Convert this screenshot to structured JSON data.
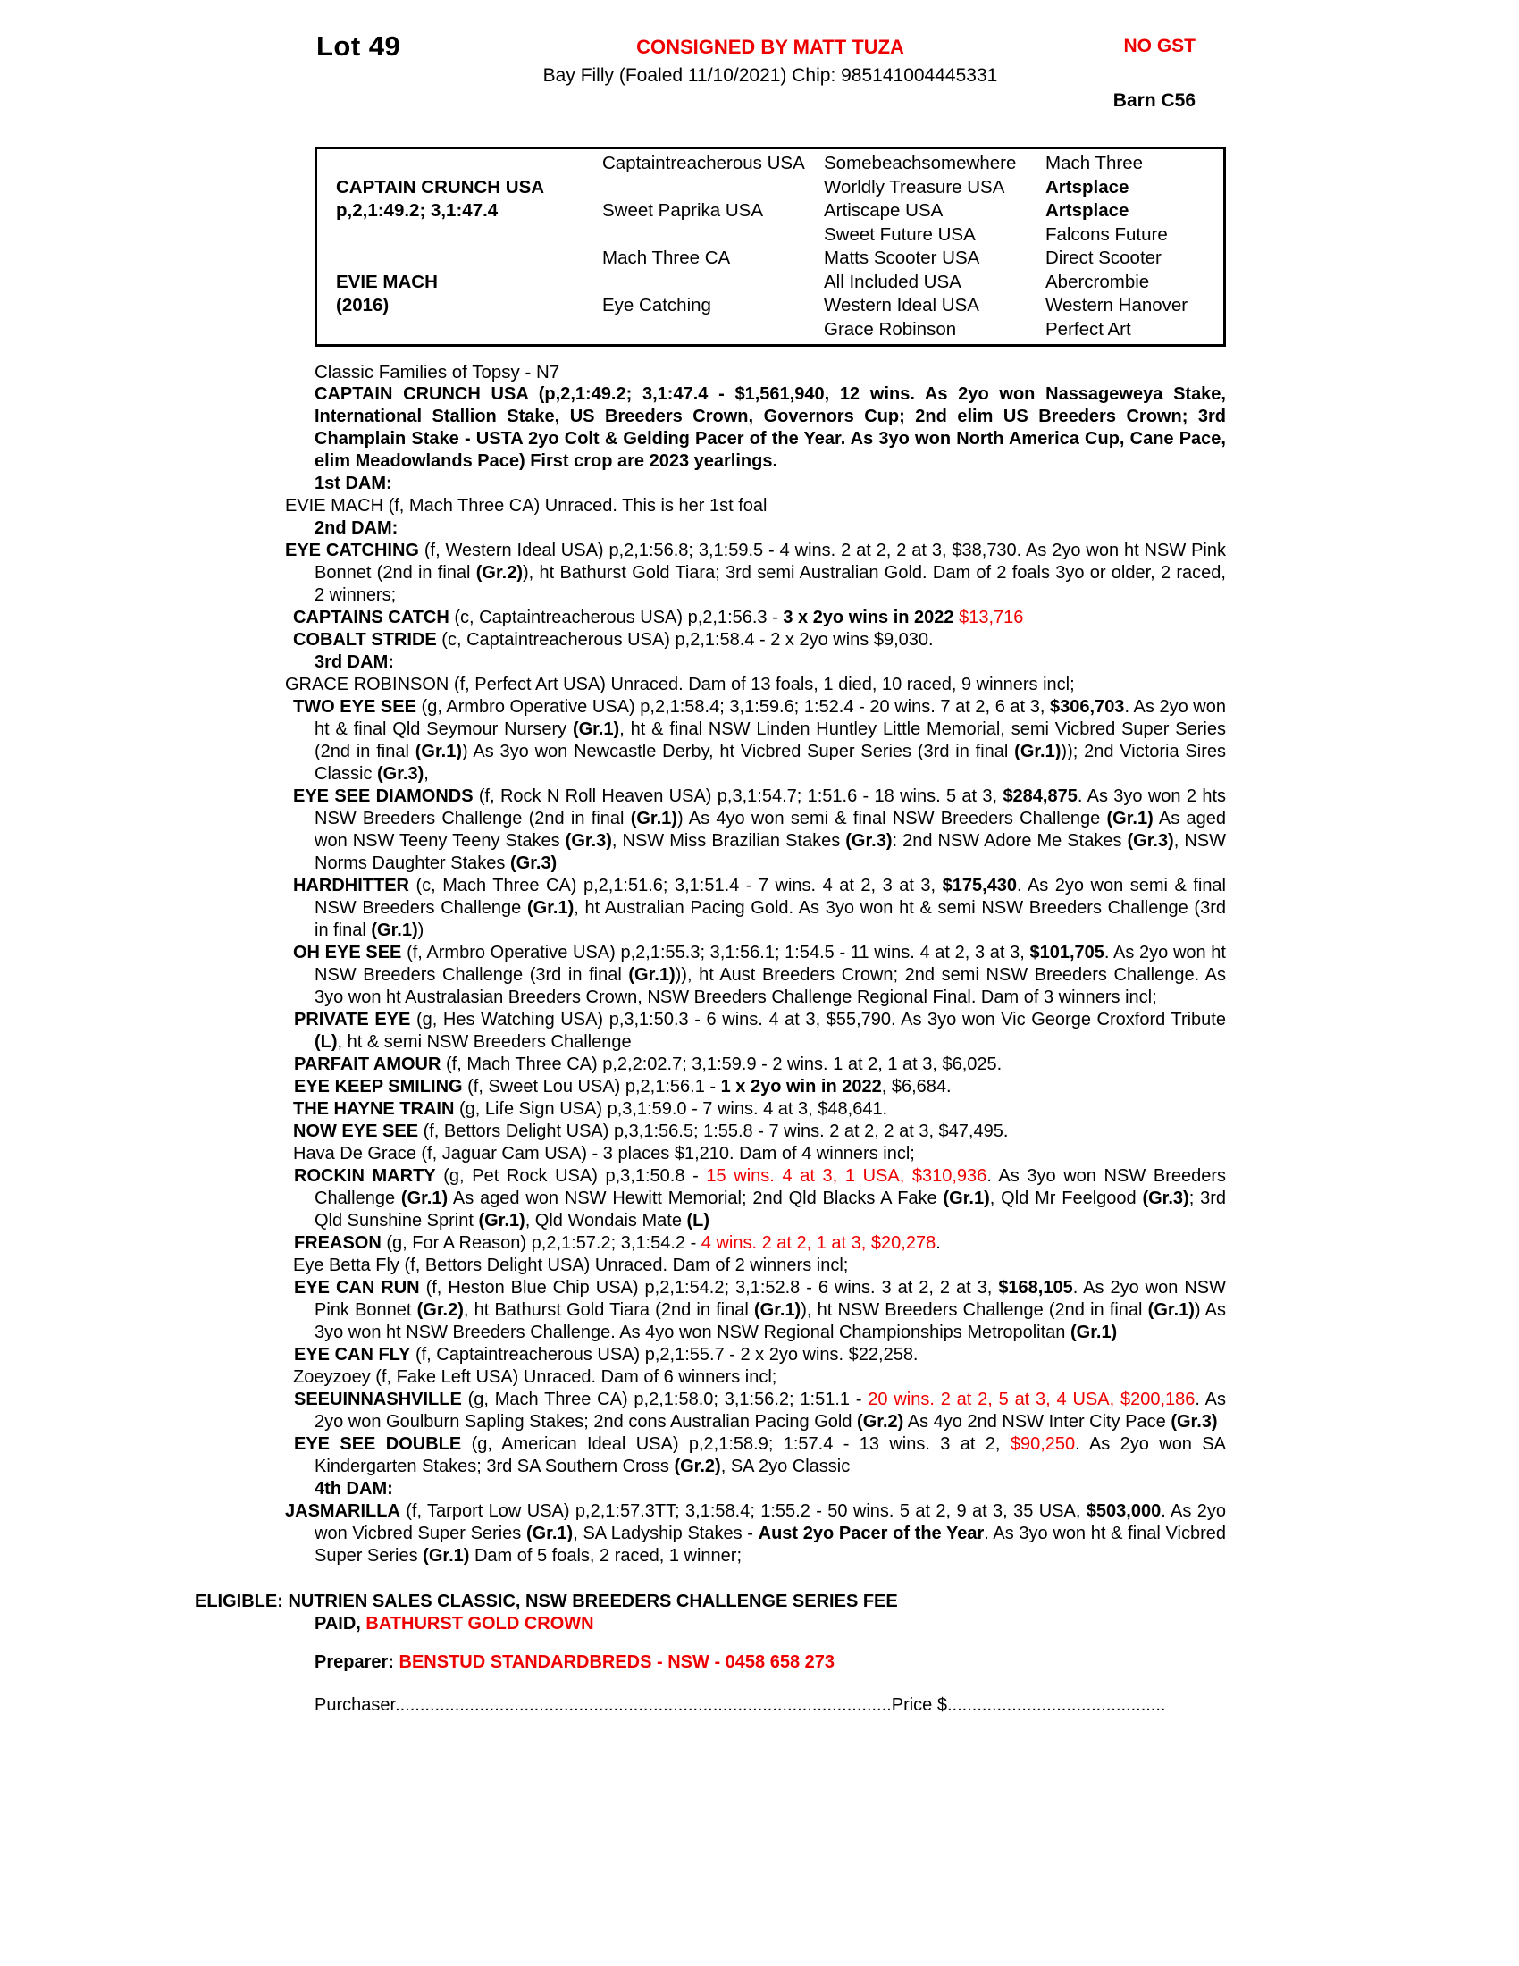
{
  "header": {
    "lot": "Lot 49",
    "consigned": "CONSIGNED BY MATT TUZA",
    "no_gst": "NO GST",
    "description": "Bay Filly (Foaled 11/10/2021) Chip: 985141004445331",
    "barn": "Barn C56"
  },
  "colors": {
    "accent_red": "#ee0000",
    "text": "#000000",
    "page_bg": "#ffffff"
  },
  "pedigree_table": {
    "cells": [
      {
        "col": 1,
        "row": 2,
        "t": "CAPTAIN CRUNCH USA",
        "b": true
      },
      {
        "col": 1,
        "row": 3,
        "t": "p,2,1:49.2; 3,1:47.4",
        "b": true
      },
      {
        "col": 1,
        "row": 6,
        "t": "EVIE MACH",
        "b": true
      },
      {
        "col": 1,
        "row": 7,
        "t": "(2016)",
        "b": true
      },
      {
        "col": 2,
        "row": 1,
        "t": "Captaintreacherous USA"
      },
      {
        "col": 2,
        "row": 3,
        "t": "Sweet Paprika USA"
      },
      {
        "col": 2,
        "row": 5,
        "t": "Mach Three CA"
      },
      {
        "col": 2,
        "row": 7,
        "t": "Eye Catching"
      },
      {
        "col": 3,
        "row": 1,
        "t": "Somebeachsomewhere"
      },
      {
        "col": 3,
        "row": 2,
        "t": "Worldly Treasure USA"
      },
      {
        "col": 3,
        "row": 3,
        "t": "Artiscape USA"
      },
      {
        "col": 3,
        "row": 4,
        "t": "Sweet Future USA"
      },
      {
        "col": 3,
        "row": 5,
        "t": "Matts Scooter USA"
      },
      {
        "col": 3,
        "row": 6,
        "t": "All Included USA"
      },
      {
        "col": 3,
        "row": 7,
        "t": "Western Ideal USA"
      },
      {
        "col": 3,
        "row": 8,
        "t": "Grace Robinson"
      },
      {
        "col": 4,
        "row": 1,
        "t": "Mach Three"
      },
      {
        "col": 4,
        "row": 2,
        "t": "Artsplace",
        "b": true
      },
      {
        "col": 4,
        "row": 3,
        "t": "Artsplace",
        "b": true
      },
      {
        "col": 4,
        "row": 4,
        "t": "Falcons Future"
      },
      {
        "col": 4,
        "row": 5,
        "t": "Direct Scooter"
      },
      {
        "col": 4,
        "row": 6,
        "t": "Abercrombie"
      },
      {
        "col": 4,
        "row": 7,
        "t": "Western Hanover"
      },
      {
        "col": 4,
        "row": 8,
        "t": "Perfect Art"
      }
    ]
  },
  "family_line": "Classic Families of Topsy - N7",
  "paragraphs": [
    {
      "name": "sire-summary",
      "cls": "sire",
      "segments": [
        {
          "t": "CAPTAIN CRUNCH USA (p,2,1:49.2; 3,1:47.4 - $1,561,940, 12 wins. As 2yo won Nassageweya Stake, International Stallion Stake, US Breeders Crown, Governors Cup; 2nd elim US Breeders Crown; 3rd Champlain Stake - USTA 2yo Colt & Gelding Pacer of the Year. As 3yo won North America Cup, Cane Pace, elim Meadowlands Pace) First crop are 2023 yearlings.",
          "b": true
        }
      ]
    },
    {
      "name": "dam-heading-1st",
      "cls": "damh mt",
      "segments": [
        {
          "t": "1st DAM:",
          "b": true
        }
      ]
    },
    {
      "name": "mare-evie-mach",
      "cls": "l0h",
      "segments": [
        {
          "t": "EVIE MACH (f, Mach Three CA) Unraced. This is her 1st foal"
        }
      ]
    },
    {
      "name": "dam-heading-2nd",
      "cls": "damh",
      "segments": [
        {
          "t": "2nd DAM:",
          "b": true
        }
      ]
    },
    {
      "name": "mare-eye-catching",
      "cls": "l0h",
      "segments": [
        {
          "t": "EYE CATCHING",
          "b": true
        },
        {
          "t": " (f, Western Ideal USA) p,2,1:56.8; 3,1:59.5 - 4 wins. 2 at 2, 2 at 3, $38,730. As 2yo won ht NSW Pink Bonnet (2nd in final "
        },
        {
          "t": "(Gr.2)",
          "b": true
        },
        {
          "t": "), ht Bathurst Gold Tiara; 3rd semi Australian Gold. Dam of 2 foals 3yo or older, 2 raced, 2 winners;"
        }
      ]
    },
    {
      "name": "progeny-captains-catch",
      "cls": "l1",
      "segments": [
        {
          "t": "CAPTAINS CATCH",
          "b": true
        },
        {
          "t": " (c, Captaintreacherous USA) p,2,1:56.3 - "
        },
        {
          "t": "3 x 2yo wins in 2022 ",
          "b": true
        },
        {
          "t": "$13,716",
          "r": true
        }
      ]
    },
    {
      "name": "progeny-cobalt-stride",
      "cls": "l1",
      "segments": [
        {
          "t": "COBALT STRIDE",
          "b": true
        },
        {
          "t": " (c, Captaintreacherous USA) p,2,1:58.4 - 2 x 2yo wins $9,030."
        }
      ]
    },
    {
      "name": "dam-heading-3rd",
      "cls": "damh",
      "segments": [
        {
          "t": "3rd DAM:",
          "b": true
        }
      ]
    },
    {
      "name": "mare-grace-robinson",
      "cls": "l0h",
      "segments": [
        {
          "t": "GRACE ROBINSON (f, Perfect Art USA) Unraced. Dam of 13 foals, 1 died, 10 raced, 9 winners incl;"
        }
      ]
    },
    {
      "name": "progeny-two-eye-see",
      "cls": "l1",
      "segments": [
        {
          "t": "TWO EYE SEE",
          "b": true
        },
        {
          "t": " (g, Armbro Operative USA) p,2,1:58.4; 3,1:59.6; 1:52.4 - 20 wins. 7 at 2, 6 at 3, "
        },
        {
          "t": "$306,703",
          "b": true
        },
        {
          "t": ". As 2yo won ht & final Qld Seymour Nursery "
        },
        {
          "t": "(Gr.1)",
          "b": true
        },
        {
          "t": ", ht & final NSW Linden Huntley Little Memorial, semi Vicbred Super Series (2nd in final "
        },
        {
          "t": "(Gr.1)",
          "b": true
        },
        {
          "t": ") As 3yo won Newcastle Derby, ht Vicbred Super Series (3rd in final "
        },
        {
          "t": "(Gr.1)",
          "b": true
        },
        {
          "t": ")); 2nd Victoria Sires Classic "
        },
        {
          "t": "(Gr.3)",
          "b": true
        },
        {
          "t": ","
        }
      ]
    },
    {
      "name": "progeny-eye-see-diamonds",
      "cls": "l1",
      "segments": [
        {
          "t": "EYE SEE DIAMONDS",
          "b": true
        },
        {
          "t": " (f, Rock N Roll Heaven USA) p,3,1:54.7; 1:51.6 - 18 wins. 5 at 3, "
        },
        {
          "t": "$284,875",
          "b": true
        },
        {
          "t": ". As 3yo won 2 hts NSW Breeders Challenge (2nd in final "
        },
        {
          "t": "(Gr.1)",
          "b": true
        },
        {
          "t": ") As 4yo won semi & final NSW Breeders Challenge "
        },
        {
          "t": "(Gr.1)",
          "b": true
        },
        {
          "t": " As aged won NSW Teeny Teeny Stakes "
        },
        {
          "t": "(Gr.3)",
          "b": true
        },
        {
          "t": ", NSW Miss Brazilian Stakes "
        },
        {
          "t": "(Gr.3)",
          "b": true
        },
        {
          "t": ": 2nd NSW Adore Me Stakes "
        },
        {
          "t": "(Gr.3)",
          "b": true
        },
        {
          "t": ", NSW Norms Daughter Stakes "
        },
        {
          "t": "(Gr.3)",
          "b": true
        }
      ]
    },
    {
      "name": "progeny-hardhitter",
      "cls": "l1",
      "segments": [
        {
          "t": "HARDHITTER",
          "b": true
        },
        {
          "t": " (c, Mach Three CA) p,2,1:51.6; 3,1:51.4 - 7 wins. 4 at 2, 3 at 3, "
        },
        {
          "t": "$175,430",
          "b": true
        },
        {
          "t": ". As 2yo won semi & final NSW Breeders Challenge "
        },
        {
          "t": "(Gr.1)",
          "b": true
        },
        {
          "t": ", ht Australian Pacing Gold. As 3yo won ht & semi NSW Breeders Challenge (3rd in final "
        },
        {
          "t": "(Gr.1)",
          "b": true
        },
        {
          "t": ")"
        }
      ]
    },
    {
      "name": "progeny-oh-eye-see",
      "cls": "l1",
      "segments": [
        {
          "t": "OH EYE SEE",
          "b": true
        },
        {
          "t": " (f, Armbro Operative USA) p,2,1:55.3; 3,1:56.1; 1:54.5 - 11 wins. 4 at 2, 3 at 3, "
        },
        {
          "t": "$101,705",
          "b": true
        },
        {
          "t": ". As 2yo won ht NSW Breeders Challenge (3rd in final "
        },
        {
          "t": "(Gr.1)",
          "b": true
        },
        {
          "t": ")), ht Aust Breeders Crown; 2nd semi NSW Breeders Challenge. As 3yo won ht Australasian Breeders Crown, NSW Breeders Challenge Regional Final. Dam of 3 winners incl;"
        }
      ]
    },
    {
      "name": "progeny-private-eye",
      "cls": "l2",
      "segments": [
        {
          "t": "PRIVATE EYE",
          "b": true
        },
        {
          "t": " (g, Hes Watching USA) p,3,1:50.3 - 6 wins. 4 at 3, $55,790. As 3yo won Vic George Croxford Tribute "
        },
        {
          "t": "(L)",
          "b": true
        },
        {
          "t": ", ht & semi NSW Breeders Challenge"
        }
      ]
    },
    {
      "name": "progeny-parfait-amour",
      "cls": "l2",
      "segments": [
        {
          "t": "PARFAIT AMOUR",
          "b": true
        },
        {
          "t": " (f, Mach Three CA) p,2,2:02.7; 3,1:59.9 - 2 wins. 1 at 2, 1 at 3, $6,025."
        }
      ]
    },
    {
      "name": "progeny-eye-keep-smiling",
      "cls": "l2",
      "segments": [
        {
          "t": "EYE KEEP SMILING",
          "b": true
        },
        {
          "t": " (f, Sweet Lou USA) p,2,1:56.1 - "
        },
        {
          "t": "1 x 2yo win in 2022",
          "b": true
        },
        {
          "t": ", $6,684."
        }
      ]
    },
    {
      "name": "progeny-the-hayne-train",
      "cls": "l1",
      "segments": [
        {
          "t": "THE HAYNE TRAIN",
          "b": true
        },
        {
          "t": " (g, Life Sign USA) p,3,1:59.0 - 7 wins. 4 at 3, $48,641."
        }
      ]
    },
    {
      "name": "progeny-now-eye-see",
      "cls": "l1",
      "segments": [
        {
          "t": "NOW EYE SEE",
          "b": true
        },
        {
          "t": " (f, Bettors Delight USA) p,3,1:56.5; 1:55.8 - 7 wins. 2 at 2, 2 at 3, $47,495."
        }
      ]
    },
    {
      "name": "mare-hava-de-grace",
      "cls": "l1",
      "segments": [
        {
          "t": "Hava De Grace (f, Jaguar Cam USA) - 3 places $1,210. Dam of 4 winners incl;"
        }
      ]
    },
    {
      "name": "progeny-rockin-marty",
      "cls": "l2",
      "segments": [
        {
          "t": "ROCKIN MARTY",
          "b": true
        },
        {
          "t": " (g, Pet Rock USA) p,3,1:50.8 - "
        },
        {
          "t": "15 wins. 4 at 3, 1 USA, $310,936",
          "r": true
        },
        {
          "t": ". As 3yo won NSW Breeders Challenge "
        },
        {
          "t": "(Gr.1)",
          "b": true
        },
        {
          "t": " As aged won NSW Hewitt Memorial; 2nd Qld Blacks A Fake "
        },
        {
          "t": "(Gr.1)",
          "b": true
        },
        {
          "t": ", Qld Mr Feelgood "
        },
        {
          "t": "(Gr.3)",
          "b": true
        },
        {
          "t": "; 3rd Qld Sunshine Sprint "
        },
        {
          "t": "(Gr.1)",
          "b": true
        },
        {
          "t": ", Qld Wondais Mate "
        },
        {
          "t": "(L)",
          "b": true
        }
      ]
    },
    {
      "name": "progeny-freason",
      "cls": "l2",
      "segments": [
        {
          "t": "FREASON",
          "b": true
        },
        {
          "t": " (g, For A Reason) p,2,1:57.2; 3,1:54.2 - "
        },
        {
          "t": "4 wins. 2 at 2, 1 at 3, $20,278",
          "r": true
        },
        {
          "t": "."
        }
      ]
    },
    {
      "name": "mare-eye-betta-fly",
      "cls": "l1",
      "segments": [
        {
          "t": "Eye Betta Fly (f, Bettors Delight USA) Unraced. Dam of 2 winners incl;"
        }
      ]
    },
    {
      "name": "progeny-eye-can-run",
      "cls": "l2",
      "segments": [
        {
          "t": "EYE CAN RUN",
          "b": true
        },
        {
          "t": " (f, Heston Blue Chip USA) p,2,1:54.2; 3,1:52.8 - 6 wins. 3 at 2, 2 at 3, "
        },
        {
          "t": "$168,105",
          "b": true
        },
        {
          "t": ". As 2yo won NSW Pink Bonnet "
        },
        {
          "t": "(Gr.2)",
          "b": true
        },
        {
          "t": ", ht Bathurst Gold Tiara (2nd in final "
        },
        {
          "t": "(Gr.1)",
          "b": true
        },
        {
          "t": "), ht NSW Breeders Challenge (2nd in final "
        },
        {
          "t": "(Gr.1)",
          "b": true
        },
        {
          "t": ") As 3yo won ht NSW Breeders Challenge. As 4yo won NSW Regional Championships Metropolitan "
        },
        {
          "t": "(Gr.1)",
          "b": true
        }
      ]
    },
    {
      "name": "progeny-eye-can-fly",
      "cls": "l2",
      "segments": [
        {
          "t": "EYE CAN FLY",
          "b": true
        },
        {
          "t": " (f, Captaintreacherous USA) p,2,1:55.7 - 2 x 2yo wins. $22,258."
        }
      ]
    },
    {
      "name": "mare-zoeyzoey",
      "cls": "l1",
      "segments": [
        {
          "t": "Zoeyzoey (f, Fake Left USA) Unraced. Dam of 6 winners incl;"
        }
      ]
    },
    {
      "name": "progeny-seeuinnashville",
      "cls": "l2",
      "segments": [
        {
          "t": "SEEUINNASHVILLE",
          "b": true
        },
        {
          "t": " (g, Mach Three CA) p,2,1:58.0; 3,1:56.2; 1:51.1 - "
        },
        {
          "t": "20 wins. 2 at 2, 5 at 3, 4 USA, $200,186",
          "r": true
        },
        {
          "t": ". As 2yo won Goulburn Sapling Stakes; 2nd cons Australian Pacing Gold "
        },
        {
          "t": "(Gr.2)",
          "b": true
        },
        {
          "t": " As 4yo 2nd NSW Inter City Pace "
        },
        {
          "t": "(Gr.3)",
          "b": true
        }
      ]
    },
    {
      "name": "progeny-eye-see-double",
      "cls": "l2",
      "segments": [
        {
          "t": "EYE SEE DOUBLE",
          "b": true
        },
        {
          "t": " (g, American Ideal USA) p,2,1:58.9; 1:57.4 - 13 wins. 3 at 2, "
        },
        {
          "t": "$90,250",
          "r": true
        },
        {
          "t": ". As 2yo won SA Kindergarten Stakes; 3rd SA Southern Cross "
        },
        {
          "t": "(Gr.2)",
          "b": true
        },
        {
          "t": ", SA 2yo Classic"
        }
      ]
    },
    {
      "name": "dam-heading-4th",
      "cls": "damh",
      "segments": [
        {
          "t": "4th DAM:",
          "b": true
        }
      ]
    },
    {
      "name": "mare-jasmarilla",
      "cls": "l0h",
      "segments": [
        {
          "t": "JASMARILLA",
          "b": true
        },
        {
          "t": " (f, Tarport Low USA) p,2,1:57.3TT; 3,1:58.4; 1:55.2 - 50 wins. 5 at 2, 9 at 3, 35 USA, "
        },
        {
          "t": "$503,000",
          "b": true
        },
        {
          "t": ". As 2yo won Vicbred Super Series "
        },
        {
          "t": "(Gr.1)",
          "b": true
        },
        {
          "t": ", SA Ladyship Stakes - "
        },
        {
          "t": "Aust 2yo Pacer of the Year",
          "b": true
        },
        {
          "t": ". As 3yo won ht & final Vicbred Super Series "
        },
        {
          "t": "(Gr.1)",
          "b": true
        },
        {
          "t": " Dam of 5 foals, 2 raced, 1 winner;"
        }
      ]
    },
    {
      "name": "eligibility-line",
      "cls": "eligible",
      "segments": [
        {
          "t": "ELIGIBLE: NUTRIEN SALES CLASSIC, NSW BREEDERS CHALLENGE SERIES FEE",
          "b": true
        },
        {
          "br": true
        },
        {
          "t": "PAID, ",
          "b": true
        },
        {
          "t": "BATHURST GOLD CROWN",
          "b": true,
          "r": true
        }
      ]
    },
    {
      "name": "preparer-line",
      "cls": "preparer",
      "segments": [
        {
          "t": "Preparer: ",
          "b": true
        },
        {
          "t": "BENSTUD STANDARDBREDS - NSW - 0458 658 273",
          "b": true,
          "r": true
        }
      ]
    }
  ],
  "purchaser": {
    "label": "Purchaser",
    "dots1": "....................................................................................................",
    "price_label": "Price $",
    "dots2": "............................................"
  }
}
